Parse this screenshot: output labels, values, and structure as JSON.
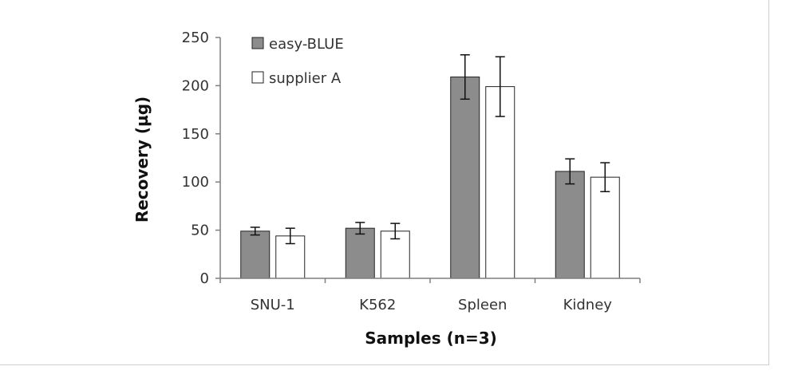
{
  "chart_data": {
    "type": "bar",
    "title": "",
    "xlabel": "Samples (n=3)",
    "ylabel": "Recovery (µg)",
    "categories": [
      "SNU-1",
      "K562",
      "Spleen",
      "Kidney"
    ],
    "ylim": [
      0,
      250
    ],
    "yticks": [
      0,
      50,
      100,
      150,
      200,
      250
    ],
    "grid": false,
    "legend_position": "top-left",
    "series": [
      {
        "name": "easy-BLUE",
        "color": "#8c8c8c",
        "values": [
          49,
          52,
          209,
          111
        ],
        "errors": [
          4,
          6,
          23,
          13
        ]
      },
      {
        "name": "supplier A",
        "color": "#ffffff",
        "values": [
          44,
          49,
          199,
          105
        ],
        "errors": [
          8,
          8,
          31,
          15
        ]
      }
    ]
  }
}
